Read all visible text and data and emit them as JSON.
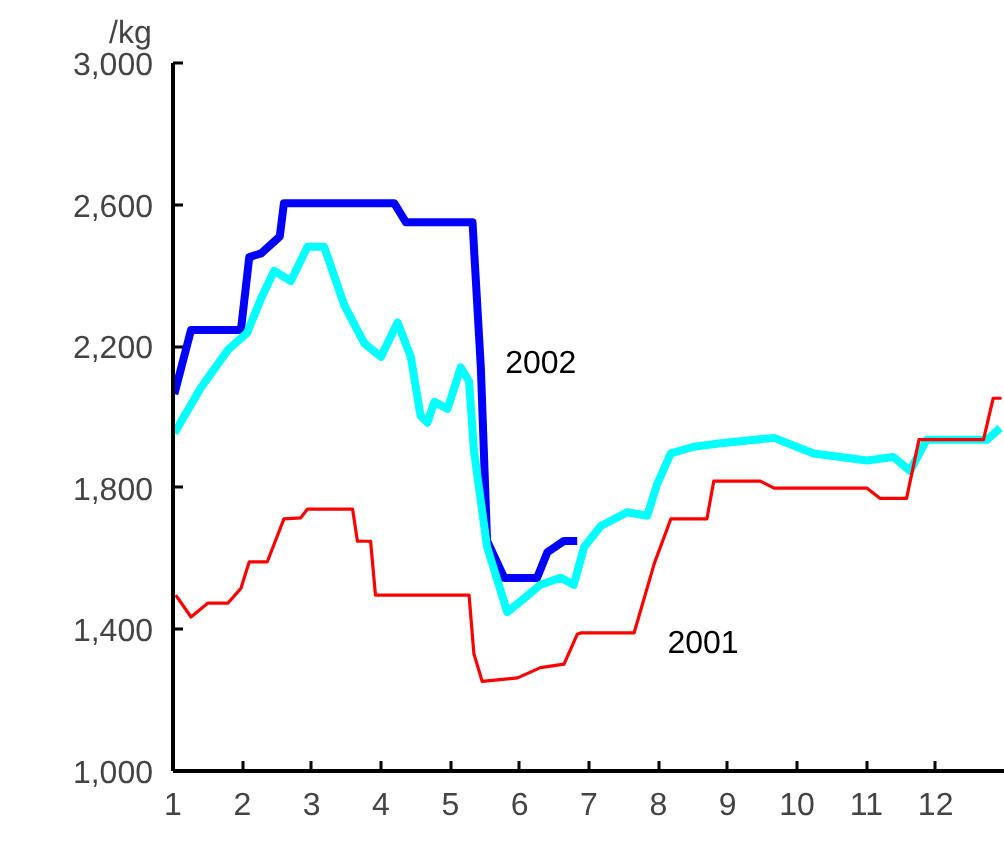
{
  "chart_data": {
    "type": "line",
    "ylabel": "/kg",
    "xlim": [
      1,
      13
    ],
    "xticks": [
      1,
      2,
      3,
      4,
      5,
      6,
      7,
      8,
      9,
      10,
      11,
      12
    ],
    "ylim": [
      1000,
      3000
    ],
    "yticks": [
      {
        "value": 1000,
        "label": "1,000"
      },
      {
        "value": 1400,
        "label": "1,400"
      },
      {
        "value": 1800,
        "label": "1,800"
      },
      {
        "value": 2200,
        "label": "2,200"
      },
      {
        "value": 2600,
        "label": "2,600"
      },
      {
        "value": 3000,
        "label": "3,000"
      }
    ],
    "grid": false,
    "series": [
      {
        "name": "2002",
        "color": "#0000ff",
        "x": [
          1.02,
          1.26,
          1.98,
          2.1,
          2.27,
          2.54,
          2.6,
          4.19,
          4.36,
          5.32,
          5.44,
          5.53,
          5.78,
          6.25,
          6.4,
          6.64,
          6.83
        ],
        "values": [
          2065,
          2246,
          2246,
          2452,
          2462,
          2510,
          2604,
          2604,
          2550,
          2550,
          2140,
          1650,
          1545,
          1545,
          1618,
          1650,
          1650
        ]
      },
      {
        "color": "#00ffff",
        "x": [
          1.02,
          1.4,
          1.79,
          2.07,
          2.27,
          2.46,
          2.7,
          2.94,
          3.18,
          3.47,
          3.76,
          4.0,
          4.24,
          4.43,
          4.57,
          4.67,
          4.77,
          4.96,
          5.15,
          5.27,
          5.34,
          5.53,
          5.82,
          6.06,
          6.3,
          6.59,
          6.78,
          6.93,
          7.17,
          7.55,
          7.84,
          7.98,
          8.18,
          8.51,
          8.9,
          9.67,
          10.24,
          11.01,
          11.39,
          11.63,
          11.87,
          12.74,
          12.93
        ],
        "values": [
          1955,
          2082,
          2189,
          2238,
          2335,
          2413,
          2384,
          2481,
          2481,
          2316,
          2208,
          2170,
          2267,
          2170,
          2004,
          1984,
          2043,
          2023,
          2140,
          2101,
          1906,
          1633,
          1449,
          1487,
          1526,
          1546,
          1526,
          1633,
          1692,
          1731,
          1721,
          1809,
          1897,
          1916,
          1926,
          1941,
          1897,
          1877,
          1887,
          1848,
          1936,
          1936,
          1969
        ]
      },
      {
        "name": "2001",
        "color": "#ff0000",
        "x": [
          1.04,
          1.26,
          1.5,
          1.79,
          1.98,
          2.1,
          2.36,
          2.6,
          2.84,
          2.94,
          3.59,
          3.66,
          3.85,
          3.92,
          5.27,
          5.34,
          5.46,
          5.97,
          6.3,
          6.64,
          6.83,
          6.88,
          7.65,
          7.94,
          8.18,
          8.7,
          8.8,
          9.47,
          9.67,
          11.01,
          11.2,
          11.58,
          11.76,
          12.69,
          12.83,
          12.95
        ],
        "values": [
          1497,
          1435,
          1474,
          1474,
          1516,
          1591,
          1591,
          1712,
          1715,
          1740,
          1740,
          1649,
          1649,
          1497,
          1497,
          1331,
          1253,
          1263,
          1292,
          1302,
          1386,
          1390,
          1390,
          1585,
          1712,
          1712,
          1819,
          1819,
          1799,
          1799,
          1770,
          1770,
          1936,
          1936,
          2053,
          2053
        ]
      }
    ]
  }
}
